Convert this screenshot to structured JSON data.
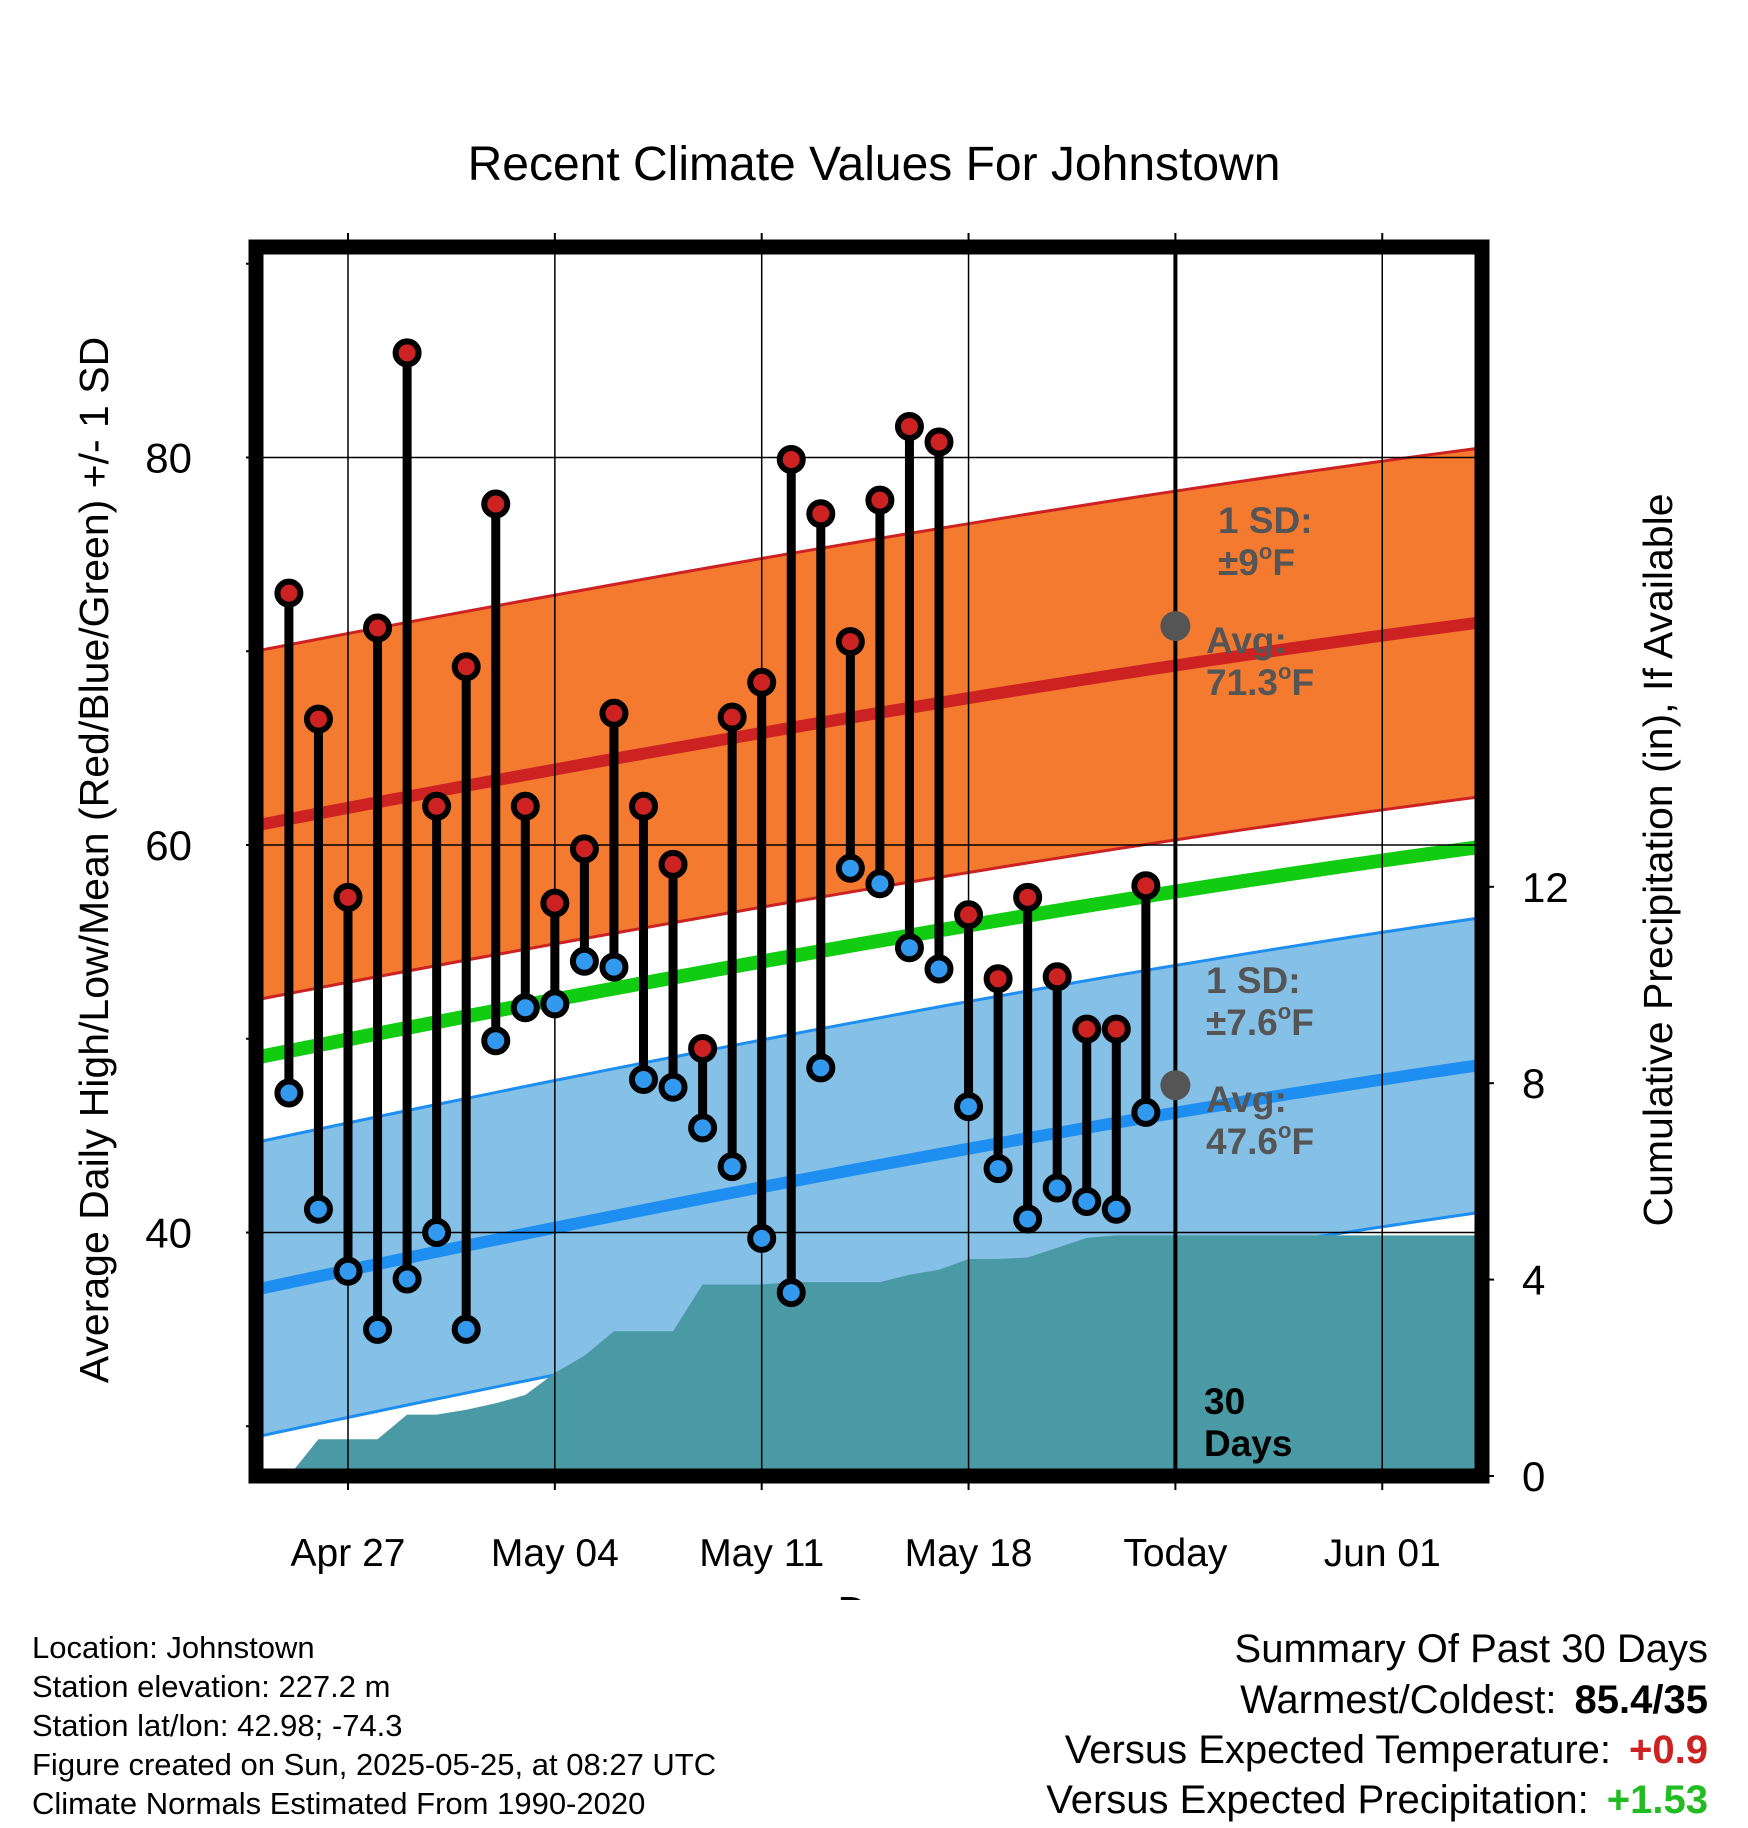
{
  "chart_data": {
    "type": "line",
    "title": "Recent Climate Values For Johnstown",
    "xlabel": "Day",
    "ylabel": "Average Daily High/Low/Mean (Red/Blue/Green) +/- 1 SD",
    "y2label": "Cumulative Precipitation (in), If Available",
    "ylim": [
      29,
      92
    ],
    "y2lim": [
      0,
      24
    ],
    "yticks": [
      40,
      60,
      80
    ],
    "y2ticks": [
      0,
      4,
      8,
      12
    ],
    "xlim": [
      -4.5,
      53.5
    ],
    "x_ticks": [
      {
        "day": 0,
        "label": "Apr 27"
      },
      {
        "day": 7,
        "label": "May 04"
      },
      {
        "day": 14,
        "label": "May 11"
      },
      {
        "day": 21,
        "label": "May 18"
      },
      {
        "day": 28,
        "label": "Today"
      },
      {
        "day": 35,
        "label": "Jun 01"
      }
    ],
    "grid": true,
    "today_label": "30\nDays",
    "days": [
      -2,
      -1,
      0,
      1,
      2,
      3,
      4,
      5,
      6,
      7,
      8,
      9,
      10,
      11,
      12,
      13,
      14,
      15,
      16,
      17,
      18,
      19,
      20,
      21,
      22,
      23,
      24,
      25,
      26,
      27
    ],
    "series": [
      {
        "name": "High",
        "color": "#cc2222",
        "values": [
          73.0,
          66.5,
          57.3,
          71.2,
          85.4,
          62.0,
          69.2,
          77.6,
          62.0,
          57.0,
          59.8,
          66.8,
          62.0,
          59.0,
          49.5,
          66.6,
          68.4,
          79.9,
          77.1,
          70.5,
          77.8,
          81.6,
          80.8,
          56.4,
          53.1,
          57.3,
          53.2,
          50.5,
          50.5,
          57.9
        ]
      },
      {
        "name": "Low",
        "color": "#3399ee",
        "values": [
          47.2,
          41.2,
          38.0,
          35.0,
          37.6,
          40.0,
          35.0,
          49.9,
          51.6,
          51.8,
          54.0,
          53.7,
          47.9,
          47.5,
          45.4,
          43.4,
          39.7,
          36.9,
          48.5,
          58.8,
          58.0,
          54.7,
          53.6,
          46.5,
          43.3,
          40.7,
          42.3,
          41.6,
          41.2,
          46.2
        ]
      }
    ],
    "normals": {
      "high_avg": {
        "name": "Avg high",
        "color": "#cc2222",
        "start": 60.6,
        "end": 73.8,
        "today": 71.3
      },
      "high_sd": 9,
      "high_band_color": "#f47a30",
      "low_avg": {
        "name": "Avg low",
        "color": "#1e8ff0",
        "start": 36.6,
        "end": 51.2,
        "today": 47.6
      },
      "low_sd": 7.6,
      "low_band_color": "#85c0e6",
      "mean_color": "#11cc11",
      "mean_start": 48.6,
      "mean_end": 62.3
    },
    "precip": {
      "name": "Cumulative Precipitation",
      "color": "#4a9aa5",
      "x": [
        -2,
        -1,
        0,
        1,
        2,
        3,
        4,
        5,
        6,
        7,
        8,
        9,
        10,
        11,
        12,
        13,
        14,
        15,
        16,
        17,
        18,
        19,
        20,
        21,
        22,
        23,
        24,
        25,
        26,
        27,
        28,
        53.3
      ],
      "values": [
        0.0,
        0.75,
        0.75,
        0.75,
        1.25,
        1.25,
        1.35,
        1.48,
        1.65,
        2.1,
        2.45,
        2.95,
        2.95,
        2.95,
        3.9,
        3.9,
        3.9,
        3.95,
        3.95,
        3.95,
        3.95,
        4.1,
        4.2,
        4.42,
        4.42,
        4.45,
        4.65,
        4.85,
        4.9,
        4.9,
        4.9,
        4.9
      ]
    },
    "annotations": {
      "high_sd_text": [
        "1 SD:",
        "±9",
        "o",
        "F"
      ],
      "high_avg_text": [
        "Avg:",
        "71.3",
        "o",
        "F"
      ],
      "low_sd_text": [
        "1 SD:",
        "±7.6",
        "o",
        "F"
      ],
      "low_avg_text": [
        "Avg:",
        "47.6",
        "o",
        "F"
      ]
    }
  },
  "meta": {
    "location": "Location: Johnstown",
    "elevation": "Station elevation: 227.2 m",
    "latlon": "Station lat/lon: 42.98; -74.3",
    "created": "Figure created on Sun, 2025-05-25, at 08:27 UTC",
    "normals": "Climate Normals Estimated From 1990-2020"
  },
  "summary": {
    "title": "Summary Of Past 30 Days",
    "warmest_label": "Warmest/Coldest:",
    "warmest_value": "85.4/35",
    "temp_label": "Versus Expected Temperature:",
    "temp_value": "+0.9",
    "temp_color": "#cc2222",
    "precip_label": "Versus Expected Precipitation:",
    "precip_value": "+1.53",
    "precip_color": "#22bb22"
  }
}
